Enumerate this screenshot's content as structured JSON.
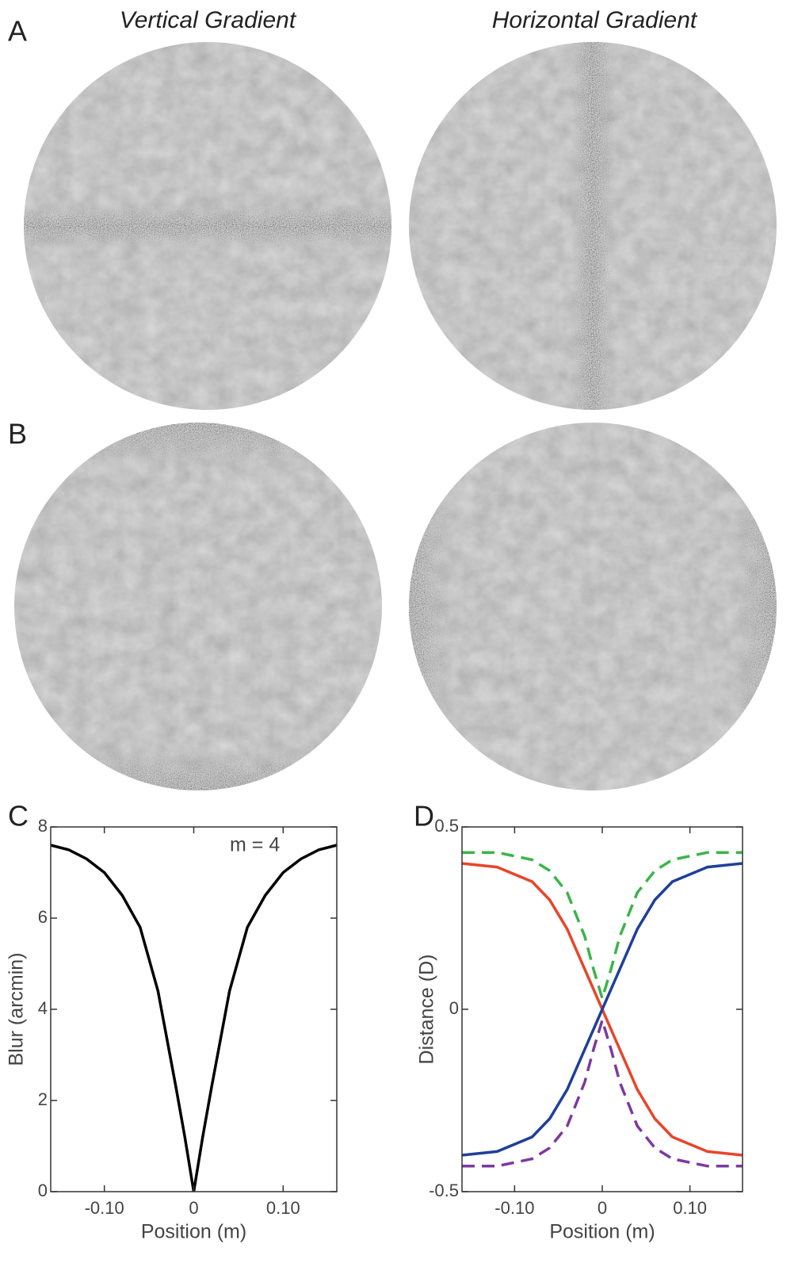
{
  "panel_labels": [
    "A",
    "B",
    "C",
    "D"
  ],
  "column_titles": [
    "Vertical Gradient",
    "Horizontal Gradient"
  ],
  "chart_data": [
    {
      "type": "line",
      "annotation": "m = 4",
      "x_label": "Position (m)",
      "y_label": "Blur (arcmin)",
      "x": [
        -0.16,
        -0.14,
        -0.12,
        -0.1,
        -0.08,
        -0.06,
        -0.04,
        -0.02,
        -0.01,
        0,
        0.01,
        0.02,
        0.04,
        0.06,
        0.08,
        0.1,
        0.12,
        0.14,
        0.16
      ],
      "series": [
        {
          "color": "#000000",
          "dashed": false,
          "values": [
            7.6,
            7.5,
            7.3,
            7.0,
            6.5,
            5.8,
            4.4,
            2.3,
            1.2,
            0,
            1.2,
            2.3,
            4.4,
            5.8,
            6.5,
            7.0,
            7.3,
            7.5,
            7.6
          ]
        }
      ],
      "xlim": [
        -0.16,
        0.16
      ],
      "ylim": [
        0,
        8
      ],
      "xticks": [
        {
          "value": -0.1,
          "label": "-0.10"
        },
        0,
        {
          "value": 0.1,
          "label": "0.10"
        }
      ],
      "yticks": [
        0,
        2,
        4,
        6,
        8
      ]
    },
    {
      "type": "line",
      "x_label": "Position (m)",
      "y_label": "Distance (D)",
      "x": [
        -0.16,
        -0.12,
        -0.08,
        -0.06,
        -0.04,
        -0.02,
        -0.01,
        0,
        0.01,
        0.02,
        0.04,
        0.06,
        0.08,
        0.12,
        0.16
      ],
      "series": [
        {
          "color": "#3cb44a",
          "dashed": true,
          "values": [
            0.43,
            0.43,
            0.41,
            0.38,
            0.32,
            0.2,
            0.11,
            0.03,
            0.11,
            0.2,
            0.32,
            0.38,
            0.41,
            0.43,
            0.43
          ]
        },
        {
          "color": "#7b3a9e",
          "dashed": true,
          "values": [
            -0.43,
            -0.43,
            -0.41,
            -0.38,
            -0.32,
            -0.2,
            -0.11,
            -0.03,
            -0.11,
            -0.2,
            -0.32,
            -0.38,
            -0.41,
            -0.43,
            -0.43
          ]
        },
        {
          "color": "#e8452a",
          "dashed": false,
          "values": [
            0.4,
            0.39,
            0.35,
            0.3,
            0.22,
            0.11,
            0.055,
            0,
            -0.055,
            -0.11,
            -0.22,
            -0.3,
            -0.35,
            -0.39,
            -0.4
          ]
        },
        {
          "color": "#1f3f9a",
          "dashed": false,
          "values": [
            -0.4,
            -0.39,
            -0.35,
            -0.3,
            -0.22,
            -0.11,
            -0.055,
            0,
            0.055,
            0.11,
            0.22,
            0.3,
            0.35,
            0.39,
            0.4
          ]
        }
      ],
      "xlim": [
        -0.16,
        0.16
      ],
      "ylim": [
        -0.5,
        0.5
      ],
      "xticks": [
        {
          "value": -0.1,
          "label": "-0.10"
        },
        0,
        {
          "value": 0.1,
          "label": "0.10"
        }
      ],
      "yticks": [
        {
          "value": -0.5,
          "label": "-0.5"
        },
        0,
        0.5
      ]
    }
  ]
}
